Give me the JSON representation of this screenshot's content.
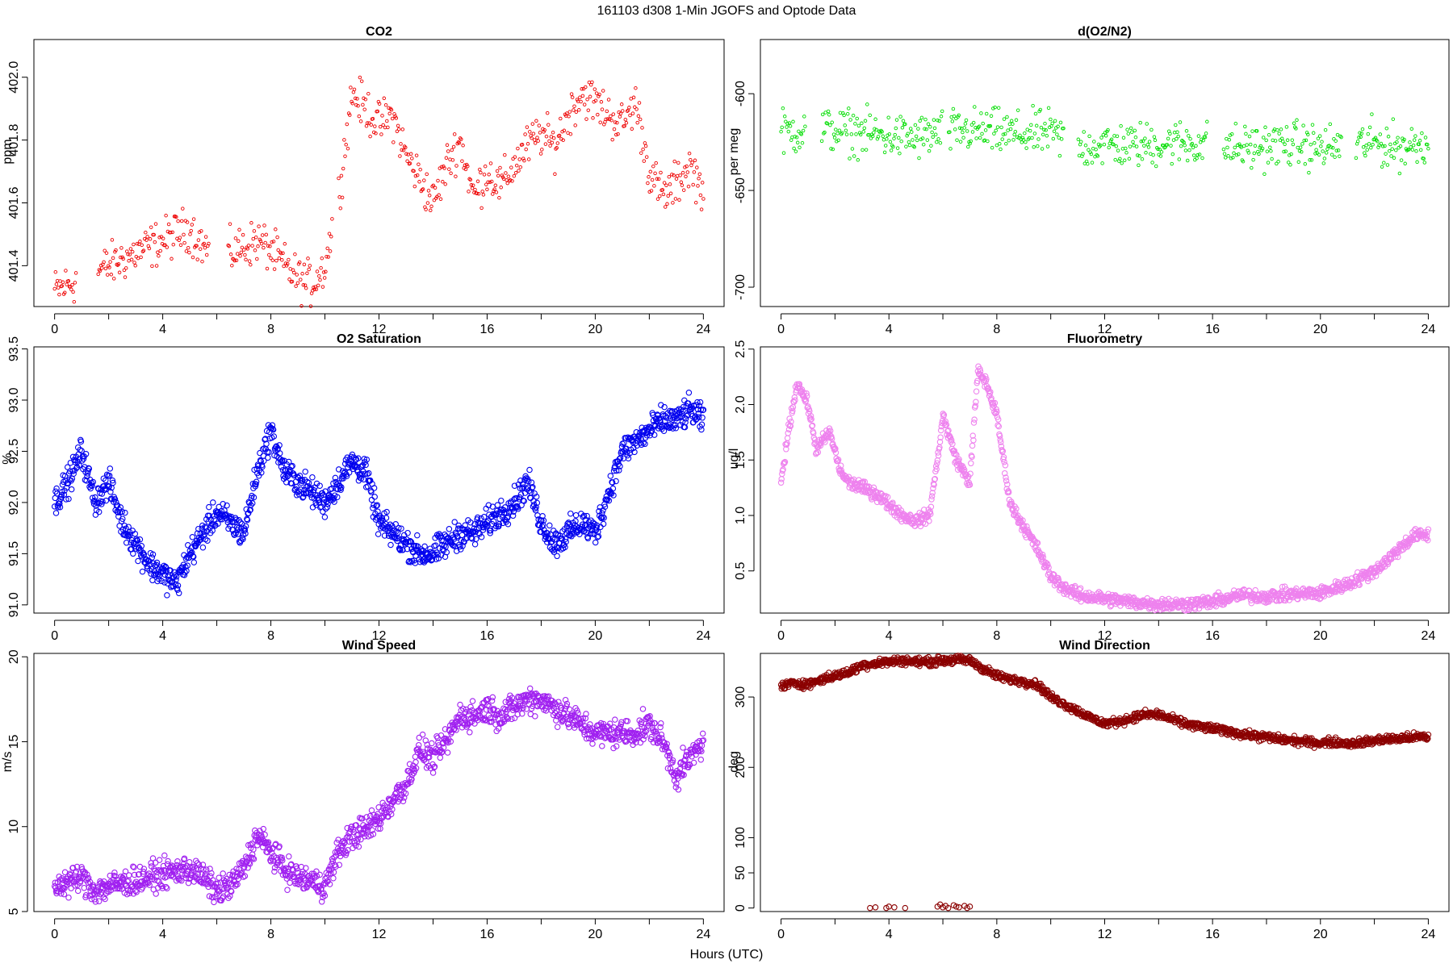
{
  "figure": {
    "title": "161103   d308   1-Min  JGOFS and Optode Data",
    "xlabel": "Hours (UTC)"
  },
  "chart_data": [
    {
      "type": "scatter",
      "title": "CO2",
      "ylabel": "ppm",
      "xlabel": "",
      "color": "#ee0000",
      "marker_size": "small",
      "xlim": [
        0,
        24
      ],
      "ylim": [
        401.27,
        402.12
      ],
      "xticks": [
        "0",
        "4",
        "8",
        "12",
        "16",
        "20",
        "24"
      ],
      "yticks": [
        "401.4",
        "401.6",
        "401.8",
        "402.0"
      ],
      "ytick_values": [
        401.4,
        401.6,
        401.8,
        402.0
      ],
      "gaps": [
        [
          0.8,
          1.6
        ],
        [
          5.7,
          6.4
        ],
        [
          10.3,
          10.5
        ]
      ],
      "x": [
        0,
        0.5,
        1.0,
        2.0,
        3.0,
        4.0,
        4.5,
        5.0,
        5.5,
        6.5,
        7.0,
        7.5,
        8.0,
        8.5,
        9.0,
        9.5,
        10.0,
        10.5,
        11.0,
        11.5,
        12.0,
        12.5,
        13.0,
        13.5,
        14.0,
        14.5,
        15.0,
        15.5,
        16.0,
        16.5,
        17.0,
        17.5,
        18.0,
        18.5,
        19.0,
        19.5,
        20.0,
        20.5,
        21.0,
        21.5,
        22.0,
        22.5,
        23.0,
        23.5,
        24.0
      ],
      "y": [
        401.32,
        401.34,
        401.36,
        401.4,
        401.44,
        401.48,
        401.5,
        401.52,
        401.46,
        401.44,
        401.46,
        401.48,
        401.45,
        401.4,
        401.36,
        401.34,
        401.4,
        401.62,
        401.95,
        401.9,
        401.85,
        401.88,
        401.75,
        401.68,
        401.6,
        401.72,
        401.8,
        401.62,
        401.7,
        401.65,
        401.72,
        401.78,
        401.82,
        401.78,
        401.88,
        401.95,
        401.92,
        401.88,
        401.85,
        401.92,
        401.7,
        401.62,
        401.66,
        401.72,
        401.64
      ],
      "spread": 0.06
    },
    {
      "type": "scatter",
      "title": "d(O2/N2)",
      "ylabel": "per meg",
      "xlabel": "",
      "color": "#00dd00",
      "marker_size": "small",
      "xlim": [
        0,
        24
      ],
      "ylim": [
        -710,
        -572
      ],
      "xticks": [
        "0",
        "4",
        "8",
        "12",
        "16",
        "20",
        "24"
      ],
      "yticks": [
        "-600",
        "-650",
        "-700"
      ],
      "ytick_values": [
        -600,
        -650,
        -700
      ],
      "gaps": [
        [
          0.9,
          1.5
        ],
        [
          6.0,
          6.2
        ],
        [
          10.5,
          11.0
        ],
        [
          15.8,
          16.4
        ],
        [
          20.8,
          21.3
        ]
      ],
      "x": [
        0,
        1.5,
        2.0,
        3.0,
        4.0,
        5.0,
        6.0,
        7.0,
        8.0,
        9.0,
        10.0,
        11.0,
        12.0,
        13.0,
        14.0,
        15.0,
        16.5,
        17.0,
        18.0,
        19.0,
        20.0,
        21.5,
        22.0,
        23.0,
        24.0
      ],
      "y": [
        -620,
        -618,
        -619,
        -620,
        -622,
        -623,
        -620,
        -619,
        -620,
        -621,
        -620,
        -628,
        -626,
        -627,
        -626,
        -625,
        -627,
        -628,
        -627,
        -626,
        -628,
        -626,
        -625,
        -628,
        -624
      ],
      "spread": 10
    },
    {
      "type": "scatter",
      "title": "O2 Saturation",
      "ylabel": "%",
      "xlabel": "",
      "color": "#0000ee",
      "marker_size": "medium",
      "xlim": [
        0,
        24
      ],
      "ylim": [
        90.92,
        93.52
      ],
      "xticks": [
        "0",
        "4",
        "8",
        "12",
        "16",
        "20",
        "24"
      ],
      "yticks": [
        "91.0",
        "91.5",
        "92.0",
        "92.5",
        "93.0",
        "93.5"
      ],
      "ytick_values": [
        91.0,
        91.5,
        92.0,
        92.5,
        93.0,
        93.5
      ],
      "gaps": [],
      "x": [
        0,
        0.5,
        1.0,
        1.5,
        2.0,
        2.5,
        3.0,
        3.5,
        4.0,
        4.5,
        5.0,
        5.5,
        6.0,
        6.5,
        7.0,
        7.5,
        8.0,
        8.5,
        9.0,
        9.5,
        10.0,
        10.5,
        11.0,
        11.5,
        12.0,
        12.5,
        13.0,
        13.5,
        14.0,
        14.5,
        15.0,
        15.5,
        16.0,
        16.5,
        17.0,
        17.5,
        18.0,
        18.5,
        19.0,
        19.5,
        20.0,
        20.5,
        21.0,
        21.5,
        22.0,
        22.5,
        23.0,
        23.5,
        24.0
      ],
      "y": [
        92.0,
        92.2,
        92.5,
        92.0,
        92.2,
        91.8,
        91.6,
        91.4,
        91.3,
        91.2,
        91.5,
        91.7,
        91.9,
        91.8,
        91.7,
        92.3,
        92.7,
        92.3,
        92.2,
        92.1,
        92.0,
        92.2,
        92.4,
        92.3,
        91.8,
        91.7,
        91.6,
        91.5,
        91.5,
        91.6,
        91.7,
        91.7,
        91.8,
        91.9,
        92.0,
        92.2,
        91.8,
        91.6,
        91.7,
        91.8,
        91.7,
        92.1,
        92.5,
        92.6,
        92.7,
        92.8,
        92.8,
        92.9,
        92.8
      ],
      "spread": 0.12
    },
    {
      "type": "scatter",
      "title": "Fluorometry",
      "ylabel": "ug/l",
      "xlabel": "",
      "color": "#ee82ee",
      "marker_size": "medium",
      "xlim": [
        0,
        24
      ],
      "ylim": [
        0.12,
        2.52
      ],
      "xticks": [
        "0",
        "4",
        "8",
        "12",
        "16",
        "20",
        "24"
      ],
      "yticks": [
        "0.5",
        "1.0",
        "1.5",
        "2.0",
        "2.5"
      ],
      "ytick_values": [
        0.5,
        1.0,
        1.5,
        2.0,
        2.5
      ],
      "gaps": [],
      "x": [
        0,
        0.3,
        0.6,
        1.0,
        1.3,
        1.8,
        2.2,
        2.5,
        3.0,
        3.5,
        4.0,
        4.5,
        5.0,
        5.5,
        5.8,
        6.0,
        6.5,
        7.0,
        7.3,
        7.6,
        8.0,
        8.5,
        9.0,
        9.5,
        10.0,
        10.5,
        11.0,
        12.0,
        13.0,
        14.0,
        15.0,
        16.0,
        17.0,
        18.0,
        19.0,
        20.0,
        21.0,
        22.0,
        22.5,
        23.0,
        23.5,
        24.0
      ],
      "y": [
        1.3,
        1.8,
        2.2,
        2.0,
        1.6,
        1.75,
        1.4,
        1.3,
        1.25,
        1.2,
        1.1,
        1.0,
        0.95,
        1.0,
        1.5,
        1.9,
        1.5,
        1.3,
        2.3,
        2.2,
        1.9,
        1.1,
        0.9,
        0.7,
        0.45,
        0.35,
        0.28,
        0.25,
        0.22,
        0.2,
        0.2,
        0.22,
        0.28,
        0.27,
        0.29,
        0.3,
        0.38,
        0.5,
        0.6,
        0.72,
        0.82,
        0.82
      ],
      "spread": 0.05
    },
    {
      "type": "scatter",
      "title": "Wind Speed",
      "ylabel": "m/s",
      "xlabel": "",
      "color": "#a020f0",
      "marker_size": "medium",
      "xlim": [
        0,
        24
      ],
      "ylim": [
        5,
        20.2
      ],
      "xticks": [
        "0",
        "4",
        "8",
        "12",
        "16",
        "20",
        "24"
      ],
      "yticks": [
        "5",
        "10",
        "15",
        "20"
      ],
      "ytick_values": [
        5,
        10,
        15,
        20
      ],
      "gaps": [],
      "x": [
        0,
        1.0,
        1.5,
        2.0,
        3.0,
        4.0,
        5.0,
        5.5,
        6.0,
        6.5,
        7.0,
        7.5,
        8.0,
        8.5,
        9.0,
        9.5,
        10.0,
        10.5,
        11.0,
        11.5,
        12.0,
        12.5,
        13.0,
        13.5,
        14.0,
        14.5,
        15.0,
        15.5,
        16.0,
        16.5,
        17.0,
        17.5,
        18.0,
        18.5,
        19.0,
        19.5,
        20.0,
        20.5,
        21.0,
        21.5,
        22.0,
        22.5,
        23.0,
        23.5,
        24.0
      ],
      "y": [
        6.5,
        7.0,
        6.2,
        6.5,
        6.8,
        7.2,
        7.5,
        7.0,
        6.2,
        6.5,
        7.5,
        9.5,
        8.5,
        7.5,
        7.0,
        6.8,
        6.5,
        8.5,
        9.5,
        9.8,
        10.5,
        11.5,
        12.5,
        14.5,
        14.0,
        15.0,
        16.5,
        16.5,
        17.0,
        16.5,
        17.0,
        17.5,
        17.5,
        17.0,
        16.5,
        16.0,
        15.5,
        15.5,
        15.5,
        15.5,
        16.0,
        15.0,
        13.0,
        14.0,
        15.0
      ],
      "spread": 0.7
    },
    {
      "type": "scatter",
      "title": "Wind Direction",
      "ylabel": "deg",
      "xlabel": "",
      "color": "#8b0000",
      "marker_size": "medium",
      "xlim": [
        0,
        24
      ],
      "ylim": [
        -5,
        362
      ],
      "xticks": [
        "0",
        "4",
        "8",
        "12",
        "16",
        "20",
        "24"
      ],
      "yticks": [
        "0",
        "50",
        "100",
        "200",
        "300"
      ],
      "ytick_values": [
        0,
        50,
        100,
        200,
        300
      ],
      "gaps": [],
      "x": [
        0,
        0.5,
        1.0,
        1.5,
        2.0,
        2.5,
        3.0,
        3.5,
        4.0,
        4.5,
        5.0,
        5.5,
        6.0,
        6.5,
        7.0,
        7.5,
        8.0,
        8.5,
        9.0,
        9.5,
        10.0,
        10.5,
        11.0,
        11.5,
        12.0,
        12.5,
        13.0,
        13.5,
        14.0,
        14.5,
        15.0,
        15.5,
        16.0,
        16.5,
        17.0,
        17.5,
        18.0,
        18.5,
        19.0,
        19.5,
        20.0,
        20.5,
        21.0,
        21.5,
        22.0,
        22.5,
        23.0,
        23.5,
        24.0
      ],
      "y": [
        315,
        320,
        318,
        325,
        330,
        335,
        345,
        348,
        350,
        352,
        350,
        350,
        352,
        353,
        352,
        340,
        330,
        325,
        322,
        318,
        300,
        290,
        280,
        270,
        262,
        265,
        270,
        275,
        275,
        268,
        262,
        258,
        255,
        252,
        248,
        245,
        243,
        240,
        238,
        236,
        235,
        236,
        234,
        235,
        238,
        240,
        241,
        243,
        243
      ],
      "spread": 5,
      "outliers": {
        "x": [
          3.3,
          3.5,
          3.9,
          4.0,
          4.2,
          4.6,
          5.8,
          5.9,
          6.0,
          6.1,
          6.2,
          6.4,
          6.5,
          6.6,
          6.8,
          6.9,
          7.0
        ],
        "y": [
          0,
          1,
          0,
          2,
          1,
          0,
          2,
          5,
          1,
          3,
          0,
          4,
          2,
          1,
          3,
          0,
          2
        ]
      }
    }
  ]
}
